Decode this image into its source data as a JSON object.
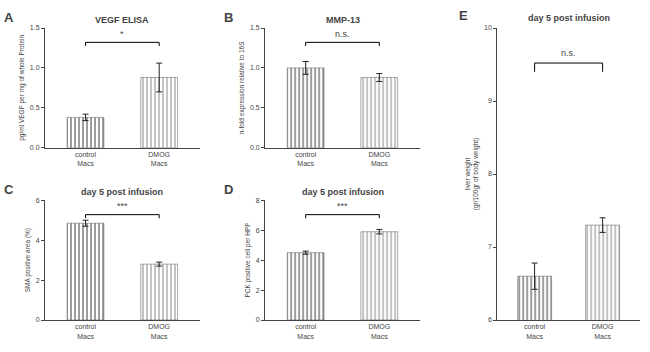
{
  "chart_data": [
    {
      "type": "bar",
      "title": "VEGF ELISA",
      "ylabel": "pg/ml VEGF per mg of whole Protein",
      "categories": [
        "control\nMacs",
        "DMOG\nMacs"
      ],
      "values": [
        0.38,
        0.88
      ],
      "errors": [
        0.04,
        0.18
      ],
      "colors": [
        "#3a3a3a",
        "#888888"
      ],
      "ylim": [
        0,
        1.5
      ],
      "yticks": [
        {
          "value": 0,
          "label": "0.0"
        },
        0.5,
        {
          "value": 1,
          "label": "1.0"
        },
        1.5
      ],
      "grid": false,
      "annotations": [
        "A",
        "*"
      ]
    },
    {
      "type": "bar",
      "title": "MMP-13",
      "ylabel": "n-fold expression relative to 16S",
      "categories": [
        "control\nMacs",
        "DMOG\nMacs"
      ],
      "values": [
        1.0,
        0.88
      ],
      "errors": [
        0.08,
        0.05
      ],
      "colors": [
        "#3a3a3a",
        "#888888"
      ],
      "ylim": [
        0,
        1.5
      ],
      "yticks": [
        {
          "value": 0,
          "label": "0.0"
        },
        0.5,
        {
          "value": 1,
          "label": "1.0"
        },
        1.5
      ],
      "grid": false,
      "annotations": [
        "B",
        "n.s."
      ]
    },
    {
      "type": "bar",
      "title": "day 5 post infusion",
      "ylabel": "SMA positive area (%)",
      "categories": [
        "control\nMacs",
        "DMOG\nMacs"
      ],
      "values": [
        4.85,
        2.8
      ],
      "errors": [
        0.15,
        0.1
      ],
      "colors": [
        "#3a3a3a",
        "#888888"
      ],
      "ylim": [
        0,
        6
      ],
      "yticks": [
        0,
        2,
        4,
        6
      ],
      "grid": false,
      "annotations": [
        "C",
        "***"
      ]
    },
    {
      "type": "bar",
      "title": "day 5 post infusion",
      "ylabel": "PCK positive cell per HPF",
      "categories": [
        "control\nMacs",
        "DMOG\nMacs"
      ],
      "values": [
        4.5,
        5.9
      ],
      "errors": [
        0.1,
        0.15
      ],
      "colors": [
        "#3a3a3a",
        "#888888"
      ],
      "ylim": [
        0,
        8
      ],
      "yticks": [
        0,
        2,
        4,
        6,
        8
      ],
      "grid": false,
      "annotations": [
        "D",
        "***"
      ]
    },
    {
      "type": "bar",
      "title": "day 5 post infusion",
      "ylabel": "liver weight\n(gr/100gr of body weight)",
      "categories": [
        "control\nMacs",
        "DMOG\nMacs"
      ],
      "values": [
        6.6,
        7.3
      ],
      "errors": [
        0.18,
        0.1
      ],
      "colors": [
        "#3a3a3a",
        "#888888"
      ],
      "ylim": [
        6,
        10
      ],
      "yticks": [
        6,
        7,
        8,
        9,
        10
      ],
      "grid": false,
      "annotations": [
        "E",
        "n.s."
      ]
    }
  ]
}
